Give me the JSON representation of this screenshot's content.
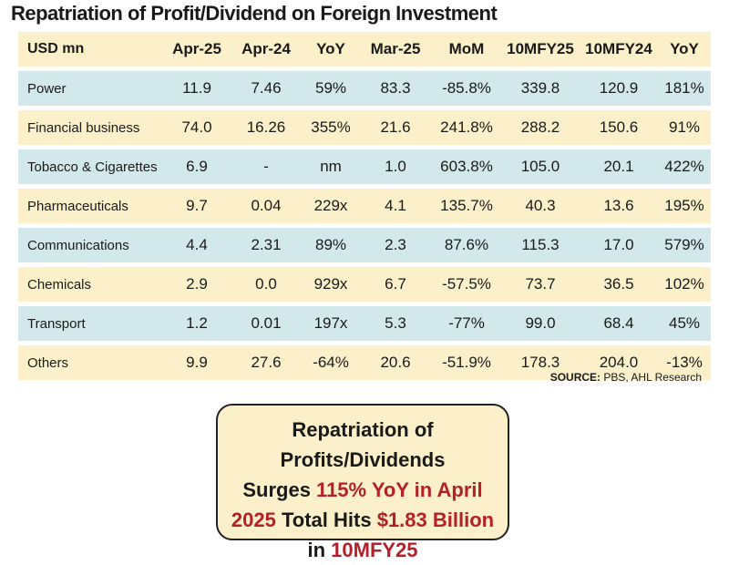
{
  "title": "Repatriation of Profit/Dividend on Foreign Investment",
  "table": {
    "headers": [
      "USD mn",
      "Apr-25",
      "Apr-24",
      "YoY",
      "Mar-25",
      "MoM",
      "10MFY25",
      "10MFY24",
      "YoY"
    ],
    "rows": [
      [
        "Power",
        "11.9",
        "7.46",
        "59%",
        "83.3",
        "-85.8%",
        "339.8",
        "120.9",
        "181%"
      ],
      [
        "Financial business",
        "74.0",
        "16.26",
        "355%",
        "21.6",
        "241.8%",
        "288.2",
        "150.6",
        "91%"
      ],
      [
        "Tobacco & Cigarettes",
        "6.9",
        "-",
        "nm",
        "1.0",
        "603.8%",
        "105.0",
        "20.1",
        "422%"
      ],
      [
        "Pharmaceuticals",
        "9.7",
        "0.04",
        "229x",
        "4.1",
        "135.7%",
        "40.3",
        "13.6",
        "195%"
      ],
      [
        "Communications",
        "4.4",
        "2.31",
        "89%",
        "2.3",
        "87.6%",
        "115.3",
        "17.0",
        "579%"
      ],
      [
        "Chemicals",
        "2.9",
        "0.0",
        "929x",
        "6.7",
        "-57.5%",
        "73.7",
        "36.5",
        "102%"
      ],
      [
        "Transport",
        "1.2",
        "0.01",
        "197x",
        "5.3",
        "-77%",
        "99.0",
        "68.4",
        "45%"
      ],
      [
        "Others",
        "9.9",
        "27.6",
        "-64%",
        "20.6",
        "-51.9%",
        "178.3",
        "204.0",
        "-13%"
      ]
    ]
  },
  "source": {
    "label": "SOURCE:",
    "text": "PBS, AHL Research"
  },
  "callout": {
    "l1": "Repatriation of Profits/Dividends",
    "l2a": "Surges ",
    "l2b": "115% YoY in April",
    "l3a": "2025",
    "l3b": " Total Hits ",
    "l3c": "$1.83 Billion",
    "l4a": "in ",
    "l4b": "10MFY25"
  },
  "colors": {
    "row_yellow": "#fbf0c9",
    "row_blue": "#d3e8ea",
    "highlight_red": "#b3202a"
  }
}
